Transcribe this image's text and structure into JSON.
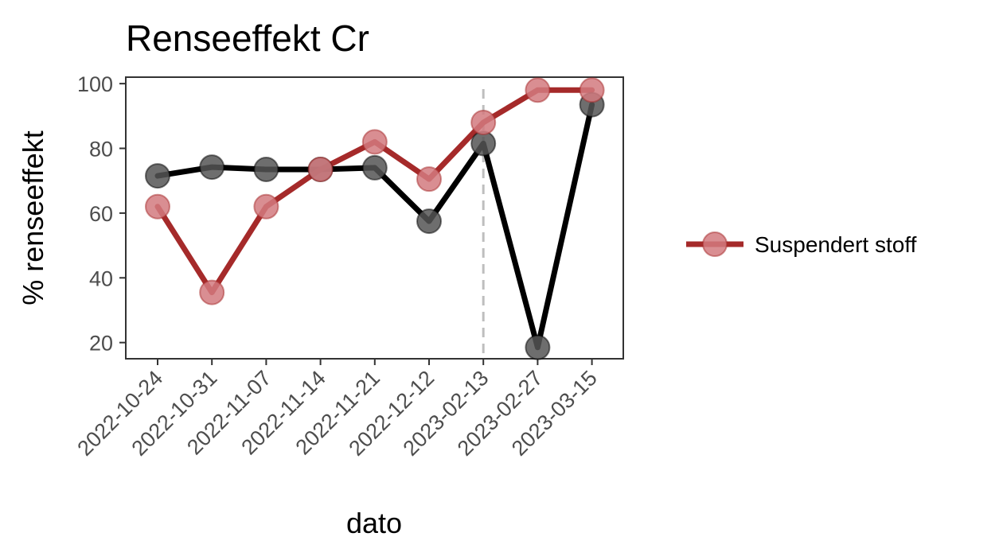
{
  "chart_data": {
    "type": "line",
    "title": "Renseeffekt Cr",
    "xlabel": "dato",
    "ylabel": "% renseeffekt",
    "categories": [
      "2022-10-24",
      "2022-10-31",
      "2022-11-07",
      "2022-11-14",
      "2022-11-21",
      "2022-12-12",
      "2023-02-13",
      "2023-02-27",
      "2023-03-15"
    ],
    "ylim": [
      15,
      102
    ],
    "yticks": [
      20,
      40,
      60,
      80,
      100
    ],
    "grid": false,
    "reference_line": {
      "x": "2023-02-13",
      "style": "dashed",
      "color": "#bebebe"
    },
    "series": [
      {
        "color": "#000000",
        "point_color": "#555555",
        "values": [
          71.5,
          74.2,
          73.5,
          73.5,
          74.0,
          57.5,
          81.5,
          18.5,
          93.5
        ]
      },
      {
        "name": "Suspendert stoff",
        "color": "#a52a2a",
        "point_color": "#d27a7f",
        "values": [
          62.0,
          35.5,
          62.0,
          73.5,
          82.0,
          70.5,
          88.0,
          98.0,
          98.0
        ]
      }
    ],
    "legend": {
      "position": "right",
      "entries": [
        "Suspendert stoff"
      ]
    }
  }
}
